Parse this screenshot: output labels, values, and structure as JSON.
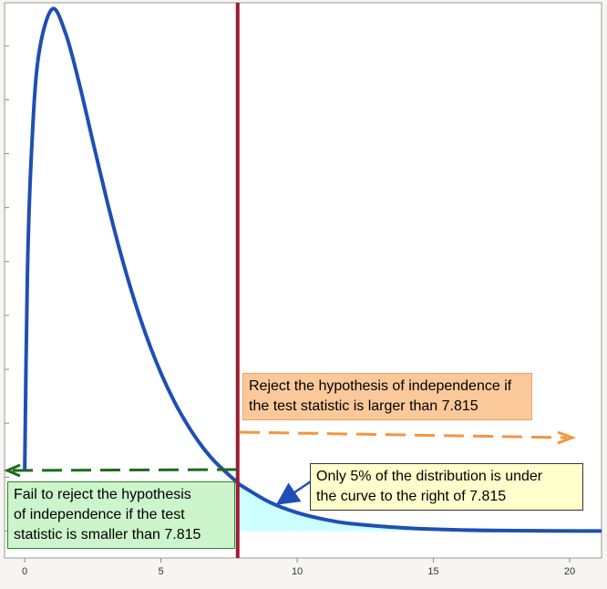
{
  "chart_data": {
    "type": "line",
    "critical_value": 7.815,
    "xlim": [
      -0.74,
      21.17
    ],
    "xticks": [
      0,
      5,
      10,
      15,
      20
    ],
    "ylim": [
      -0.0125,
      0.245
    ],
    "yticks": [
      0,
      0.025,
      0.05,
      0.075,
      0.1,
      0.125,
      0.15,
      0.175,
      0.2,
      0.225
    ],
    "series": [
      {
        "color": "#1f4fb4",
        "x": [
          0,
          0.1,
          0.25,
          0.5,
          1,
          1.5,
          2,
          2.5,
          3,
          3.5,
          4,
          4.5,
          5,
          5.5,
          6,
          6.5,
          7,
          7.815,
          8,
          9,
          10,
          11,
          12,
          14,
          16,
          18,
          21
        ],
        "values": [
          0.028,
          0.12,
          0.176,
          0.2197,
          0.242,
          0.2308,
          0.2076,
          0.1807,
          0.1542,
          0.1297,
          0.108,
          0.0892,
          0.0732,
          0.0598,
          0.0487,
          0.0394,
          0.0319,
          0.0224,
          0.0207,
          0.0133,
          0.0085,
          0.0054,
          0.0034,
          0.0014,
          0.0005,
          0.0002,
          0
        ]
      }
    ],
    "shade_color": "#ccffff",
    "critical_color": "#9b1b30",
    "annotations": [
      {
        "lines": [
          "Reject the hypothesis of independence if",
          "the test statistic is larger than 7.815"
        ]
      },
      {
        "lines": [
          "Fail to reject the hypothesis",
          "of independence if the test",
          "statistic is smaller than 7.815"
        ]
      },
      {
        "lines": [
          "Only 5% of the distribution is under",
          "the curve to the right of 7.815"
        ]
      }
    ]
  }
}
